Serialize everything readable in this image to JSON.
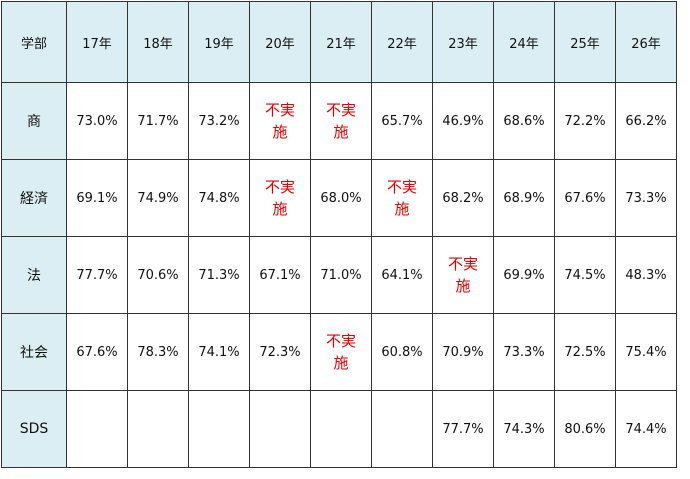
{
  "table": {
    "header": [
      "学部",
      "17年",
      "18年",
      "19年",
      "20年",
      "21年",
      "22年",
      "23年",
      "24年",
      "25年",
      "26年"
    ],
    "rows": [
      {
        "label": "商",
        "cells": [
          "73.0%",
          "71.7%",
          "73.2%",
          "不実施",
          "不実施",
          "65.7%",
          "46.9%",
          "68.6%",
          "72.2%",
          "66.2%"
        ]
      },
      {
        "label": "経済",
        "cells": [
          "69.1%",
          "74.9%",
          "74.8%",
          "不実施",
          "68.0%",
          "不実施",
          "68.2%",
          "68.9%",
          "67.6%",
          "73.3%"
        ]
      },
      {
        "label": "法",
        "cells": [
          "77.7%",
          "70.6%",
          "71.3%",
          "67.1%",
          "71.0%",
          "64.1%",
          "不実施",
          "69.9%",
          "74.5%",
          "48.3%"
        ]
      },
      {
        "label": "社会",
        "cells": [
          "67.6%",
          "78.3%",
          "74.1%",
          "72.3%",
          "不実施",
          "60.8%",
          "70.9%",
          "73.3%",
          "72.5%",
          "75.4%"
        ]
      },
      {
        "label": "SDS",
        "cells": [
          null,
          null,
          null,
          null,
          null,
          null,
          "77.7%",
          "74.3%",
          "80.6%",
          "74.4%"
        ]
      }
    ]
  }
}
